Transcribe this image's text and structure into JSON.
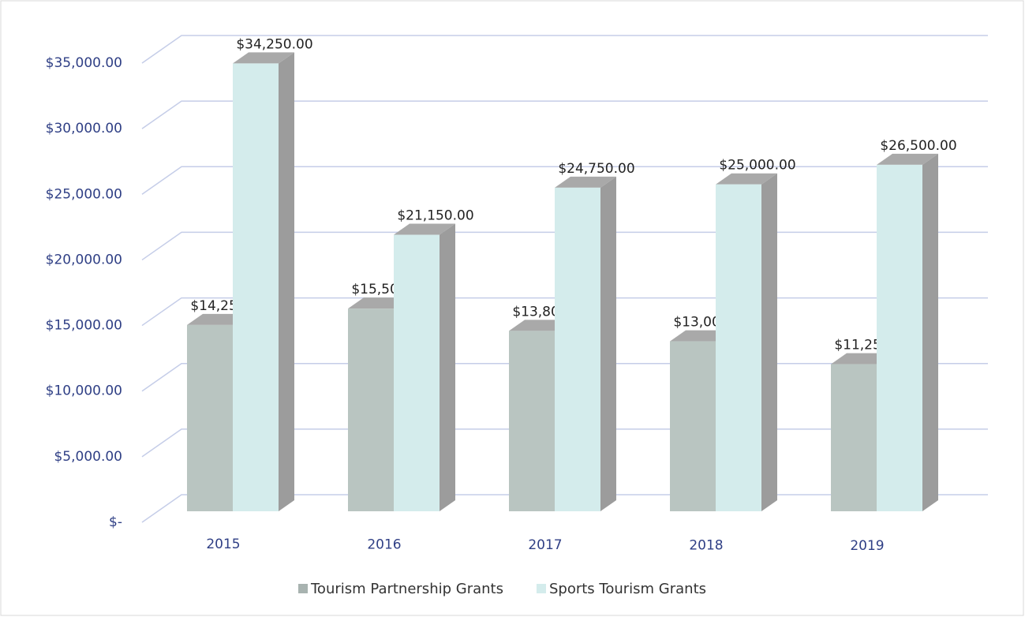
{
  "chart_data": {
    "type": "bar3d",
    "categories": [
      "2015",
      "2016",
      "2017",
      "2018",
      "2019"
    ],
    "series": [
      {
        "name": "Tourism Partnership Grants",
        "color": "#b9c5c1",
        "values": [
          14250,
          15500,
          13800,
          13000,
          11250
        ],
        "value_labels": [
          "$14,250.00",
          "$15,500.00",
          "$13,800.00",
          "$13,000.00",
          "$11,250.00"
        ]
      },
      {
        "name": "Sports Tourism Grants",
        "color": "#d4ecec",
        "values": [
          34250,
          21150,
          24750,
          25000,
          26500
        ],
        "value_labels": [
          "$34,250.00",
          "$21,150.00",
          "$24,750.00",
          "$25,000.00",
          "$26,500.00"
        ]
      }
    ],
    "ylim": [
      0,
      35000
    ],
    "yticks": [
      {
        "value": 0,
        "label": "$-"
      },
      {
        "value": 5000,
        "label": "$5,000.00"
      },
      {
        "value": 10000,
        "label": "$10,000.00"
      },
      {
        "value": 15000,
        "label": "$15,000.00"
      },
      {
        "value": 20000,
        "label": "$20,000.00"
      },
      {
        "value": 25000,
        "label": "$25,000.00"
      },
      {
        "value": 30000,
        "label": "$30,000.00"
      },
      {
        "value": 35000,
        "label": "$35,000.00"
      }
    ],
    "grid": true,
    "legend": "bottom"
  }
}
